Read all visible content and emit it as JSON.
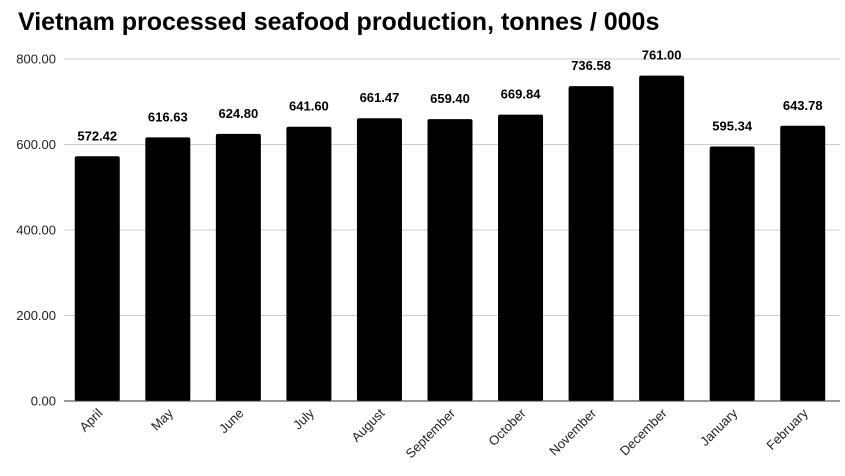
{
  "chart_data": {
    "type": "bar",
    "title": "Vietnam processed seafood production, tonnes / 000s",
    "xlabel": "",
    "ylabel": "",
    "ylim": [
      0,
      800
    ],
    "yticks": [
      0,
      200,
      400,
      600,
      800
    ],
    "ytick_labels": [
      "0.00",
      "200.00",
      "400.00",
      "600.00",
      "800.00"
    ],
    "grid": true,
    "legend": "none",
    "categories": [
      "April",
      "May",
      "June",
      "July",
      "August",
      "September",
      "October",
      "November",
      "December",
      "January",
      "February"
    ],
    "values": [
      572.42,
      616.63,
      624.8,
      641.6,
      661.47,
      659.4,
      669.84,
      736.58,
      761.0,
      595.34,
      643.78
    ],
    "value_labels": [
      "572.42",
      "616.63",
      "624.80",
      "641.60",
      "661.47",
      "659.40",
      "669.84",
      "736.58",
      "761.00",
      "595.34",
      "643.78"
    ],
    "bar_color": "#000000",
    "grid_color": "#cccccc",
    "axis_color": "#333333"
  }
}
